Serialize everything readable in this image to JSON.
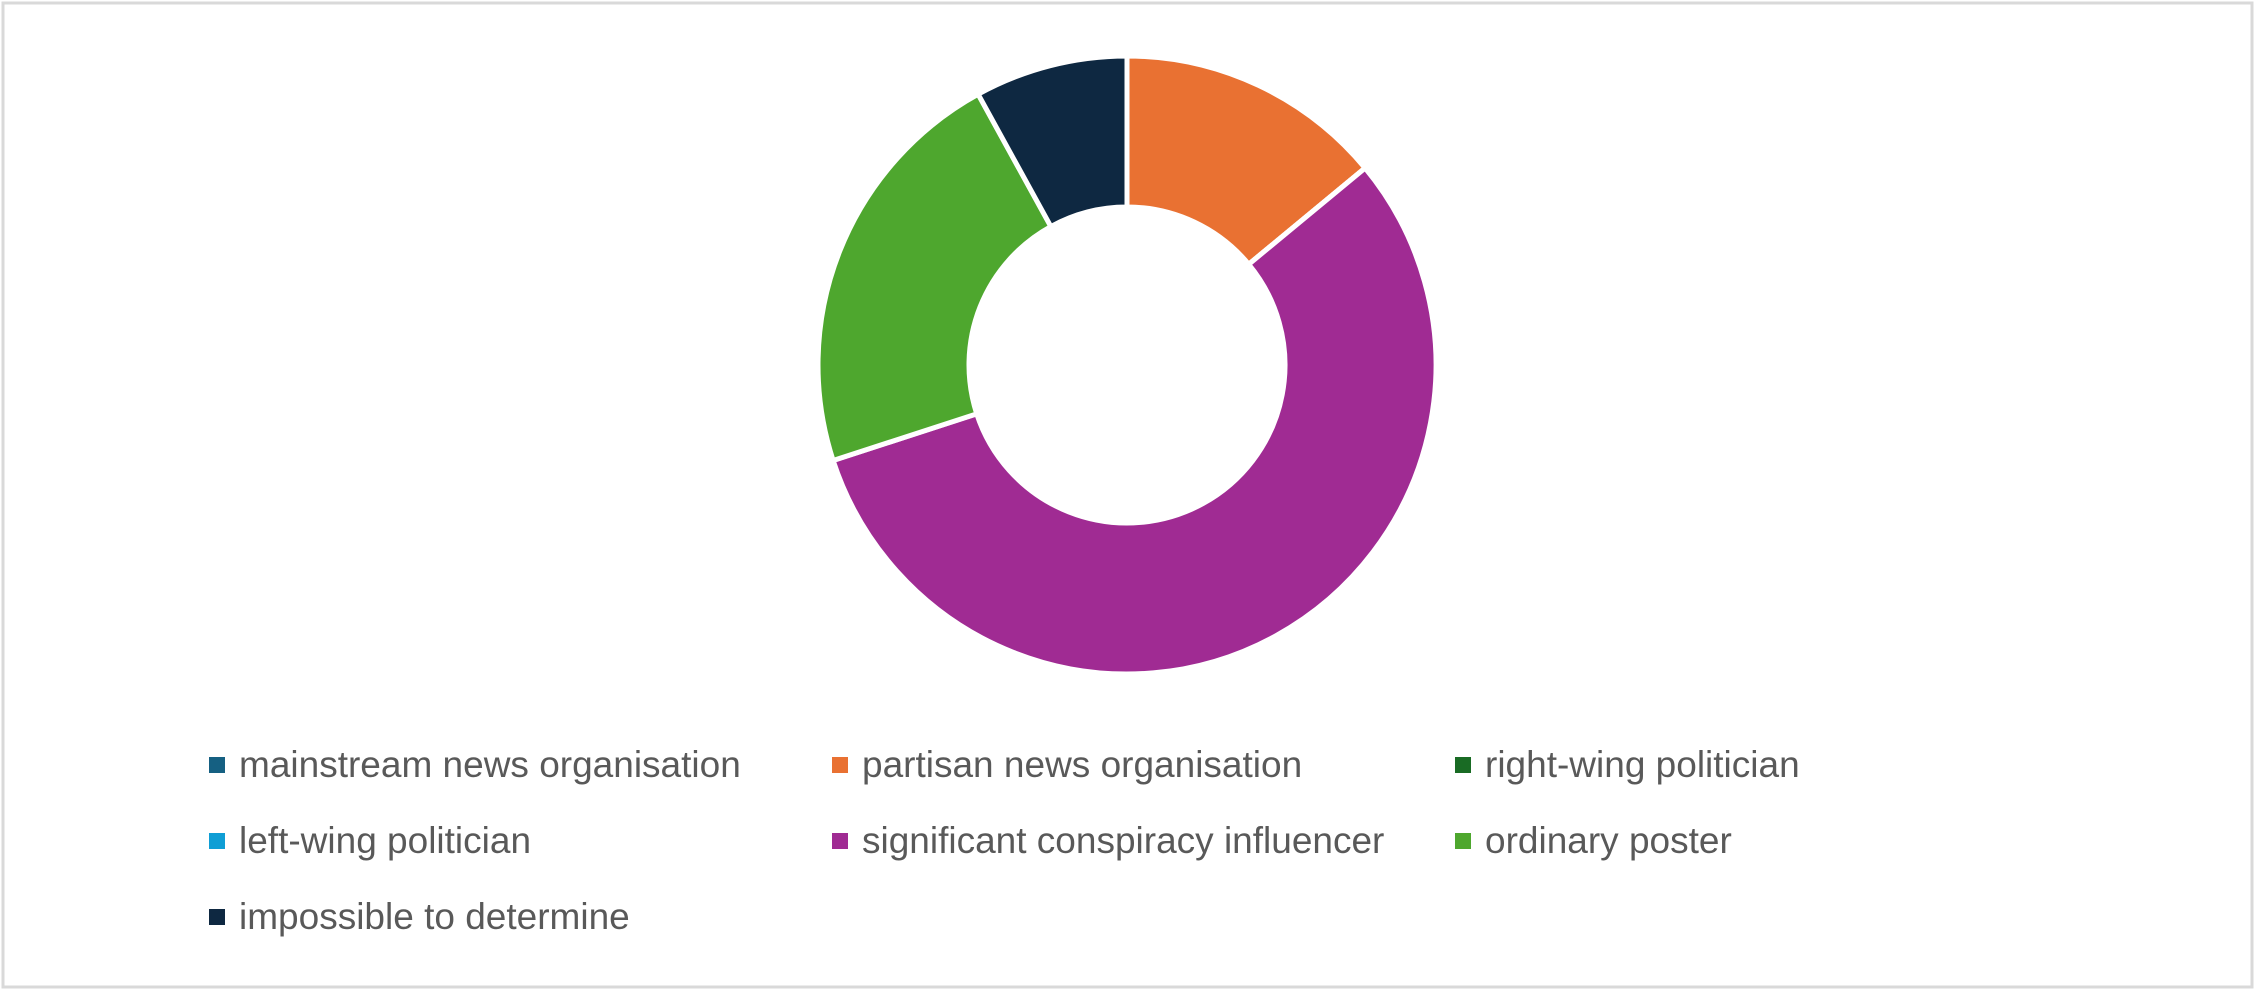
{
  "chart_data": {
    "type": "donut",
    "categories": [
      "mainstream news organisation",
      "partisan news organisation",
      "right-wing politician",
      "left-wing politician",
      "significant conspiracy influencer",
      "ordinary poster",
      "impossible to determine"
    ],
    "values": [
      0,
      14,
      0,
      0,
      56,
      22,
      8
    ],
    "colors": [
      "#156082",
      "#e97132",
      "#196b24",
      "#0f9ed5",
      "#a02b93",
      "#4ea72e",
      "#0e2841"
    ],
    "legend": "bottom"
  }
}
